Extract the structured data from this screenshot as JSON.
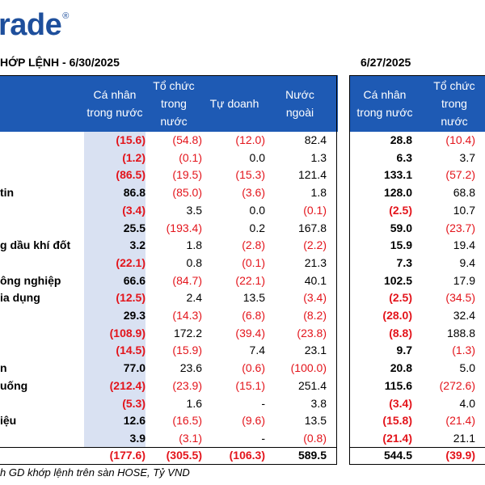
{
  "logo": {
    "text": "rade",
    "mark": "®"
  },
  "title_left": "HỚP LỆNH - 6/30/2025",
  "title_right": "6/27/2025",
  "headers_left": [
    {
      "label": "Cá nhân trong nước"
    },
    {
      "label": "Tổ chức trong nước"
    },
    {
      "label": "Tự doanh"
    },
    {
      "label": "Nước ngoài"
    }
  ],
  "headers_right": [
    {
      "label": "Cá nhân trong nước"
    },
    {
      "label": "Tổ chức trong nước"
    }
  ],
  "rows": [
    {
      "label": "",
      "v": [
        "(15.6)",
        "(54.8)",
        "(12.0)",
        "82.4",
        "28.8",
        "(10.4)"
      ]
    },
    {
      "label": "",
      "v": [
        "(1.2)",
        "(0.1)",
        "0.0",
        "1.3",
        "6.3",
        "3.7"
      ]
    },
    {
      "label": "",
      "v": [
        "(86.5)",
        "(19.5)",
        "(15.3)",
        "121.4",
        "133.1",
        "(57.2)"
      ]
    },
    {
      "label": "tin",
      "v": [
        "86.8",
        "(85.0)",
        "(3.6)",
        "1.8",
        "128.0",
        "68.8"
      ]
    },
    {
      "label": "",
      "v": [
        "(3.4)",
        "3.5",
        "0.0",
        "(0.1)",
        "(2.5)",
        "10.7"
      ]
    },
    {
      "label": "",
      "v": [
        "25.5",
        "(193.4)",
        "0.2",
        "167.8",
        "59.0",
        "(23.7)"
      ]
    },
    {
      "label": "g dầu khí đốt",
      "v": [
        "3.2",
        "1.8",
        "(2.8)",
        "(2.2)",
        "15.9",
        "19.4"
      ]
    },
    {
      "label": "",
      "v": [
        "(22.1)",
        "0.8",
        "(0.1)",
        "21.3",
        "7.3",
        "9.4"
      ]
    },
    {
      "label": "ông nghiệp",
      "v": [
        "66.6",
        "(84.7)",
        "(22.1)",
        "40.1",
        "102.5",
        "17.9"
      ]
    },
    {
      "label": "ia dụng",
      "v": [
        "(12.5)",
        "2.4",
        "13.5",
        "(3.4)",
        "(2.5)",
        "(34.5)"
      ]
    },
    {
      "label": "",
      "v": [
        "29.3",
        "(14.3)",
        "(6.8)",
        "(8.2)",
        "(28.0)",
        "32.4"
      ]
    },
    {
      "label": "",
      "v": [
        "(108.9)",
        "172.2",
        "(39.4)",
        "(23.8)",
        "(8.8)",
        "188.8"
      ]
    },
    {
      "label": "",
      "v": [
        "(14.5)",
        "(15.9)",
        "7.4",
        "23.1",
        "9.7",
        "(1.3)"
      ]
    },
    {
      "label": "n",
      "v": [
        "77.0",
        "23.6",
        "(0.6)",
        "(100.0)",
        "20.8",
        "5.0"
      ]
    },
    {
      "label": "uống",
      "v": [
        "(212.4)",
        "(23.9)",
        "(15.1)",
        "251.4",
        "115.6",
        "(272.6)"
      ]
    },
    {
      "label": "",
      "v": [
        "(5.3)",
        "1.6",
        "-",
        "3.8",
        "(3.4)",
        "4.0"
      ]
    },
    {
      "label": "iệu",
      "v": [
        "12.6",
        "(16.5)",
        "(9.6)",
        "13.5",
        "(15.8)",
        "(21.4)"
      ]
    },
    {
      "label": "",
      "v": [
        "3.9",
        "(3.1)",
        "-",
        "(0.8)",
        "(21.4)",
        "21.1"
      ]
    }
  ],
  "total": {
    "v": [
      "(177.6)",
      "(305.5)",
      "(106.3)",
      "589.5",
      "544.5",
      "(39.9)"
    ]
  },
  "footnote": "h GD khớp lệnh trên sàn HOSE, Tỷ VND",
  "colors": {
    "header_bg": "#1e5ab4",
    "negative": "#e3141b",
    "logo": "#1e4f9c",
    "shade": "#d9e1f2"
  }
}
